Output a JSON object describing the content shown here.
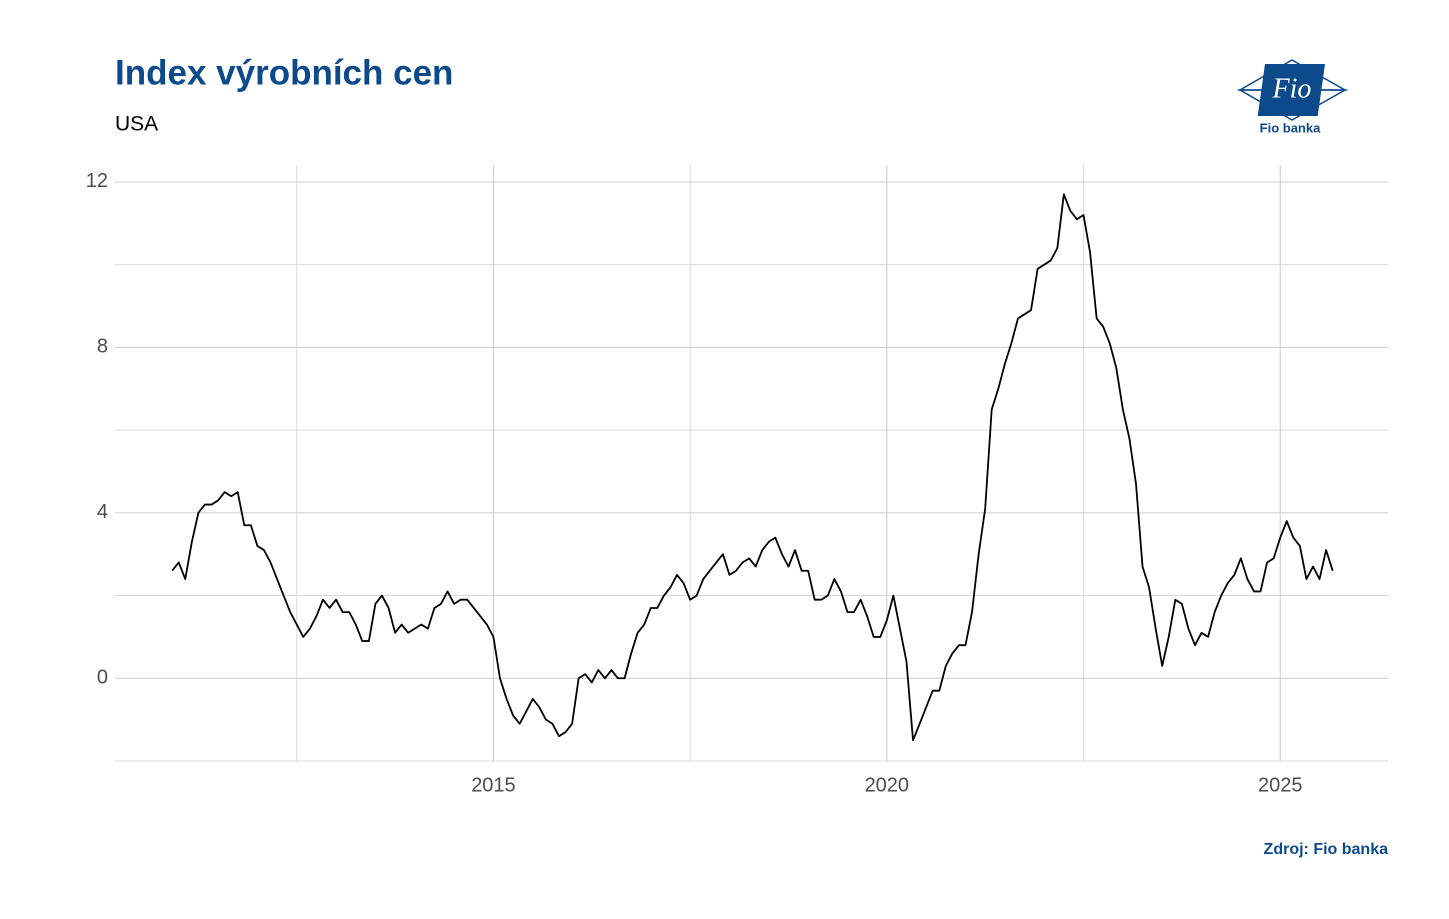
{
  "chart_data": {
    "type": "line",
    "title": "Index výrobních cen",
    "subtitle": "USA",
    "x": [
      2010.917,
      2011,
      2011.083,
      2011.167,
      2011.25,
      2011.333,
      2011.417,
      2011.5,
      2011.583,
      2011.667,
      2011.75,
      2011.833,
      2011.917,
      2012,
      2012.083,
      2012.167,
      2012.25,
      2012.333,
      2012.417,
      2012.5,
      2012.583,
      2012.667,
      2012.75,
      2012.833,
      2012.917,
      2013,
      2013.083,
      2013.167,
      2013.25,
      2013.333,
      2013.417,
      2013.5,
      2013.583,
      2013.667,
      2013.75,
      2013.833,
      2013.917,
      2014,
      2014.083,
      2014.167,
      2014.25,
      2014.333,
      2014.417,
      2014.5,
      2014.583,
      2014.667,
      2014.75,
      2014.833,
      2014.917,
      2015,
      2015.083,
      2015.167,
      2015.25,
      2015.333,
      2015.417,
      2015.5,
      2015.583,
      2015.667,
      2015.75,
      2015.833,
      2015.917,
      2016,
      2016.083,
      2016.167,
      2016.25,
      2016.333,
      2016.417,
      2016.5,
      2016.583,
      2016.667,
      2016.75,
      2016.833,
      2016.917,
      2017,
      2017.083,
      2017.167,
      2017.25,
      2017.333,
      2017.417,
      2017.5,
      2017.583,
      2017.667,
      2017.75,
      2017.833,
      2017.917,
      2018,
      2018.083,
      2018.167,
      2018.25,
      2018.333,
      2018.417,
      2018.5,
      2018.583,
      2018.667,
      2018.75,
      2018.833,
      2018.917,
      2019,
      2019.083,
      2019.167,
      2019.25,
      2019.333,
      2019.417,
      2019.5,
      2019.583,
      2019.667,
      2019.75,
      2019.833,
      2019.917,
      2020,
      2020.083,
      2020.167,
      2020.25,
      2020.333,
      2020.417,
      2020.5,
      2020.583,
      2020.667,
      2020.75,
      2020.833,
      2020.917,
      2021,
      2021.083,
      2021.167,
      2021.25,
      2021.333,
      2021.417,
      2021.5,
      2021.583,
      2021.667,
      2021.75,
      2021.833,
      2021.917,
      2022,
      2022.083,
      2022.167,
      2022.25,
      2022.333,
      2022.417,
      2022.5,
      2022.583,
      2022.667,
      2022.75,
      2022.833,
      2022.917,
      2023,
      2023.083,
      2023.167,
      2023.25,
      2023.333,
      2023.417,
      2023.5,
      2023.583,
      2023.667,
      2023.75,
      2023.833,
      2023.917,
      2024,
      2024.083,
      2024.167,
      2024.25,
      2024.333,
      2024.417,
      2024.5,
      2024.583,
      2024.667,
      2024.75,
      2024.833,
      2024.917,
      2025,
      2025.083,
      2025.167,
      2025.25,
      2025.333,
      2025.417,
      2025.5,
      2025.583,
      2025.667
    ],
    "series": [
      {
        "name": "USA",
        "color": "#000000",
        "values": [
          2.6,
          2.8,
          2.4,
          3.3,
          4.0,
          4.2,
          4.2,
          4.3,
          4.5,
          4.4,
          4.5,
          3.7,
          3.7,
          3.2,
          3.1,
          2.8,
          2.4,
          2.0,
          1.6,
          1.3,
          1.0,
          1.2,
          1.5,
          1.9,
          1.7,
          1.9,
          1.6,
          1.6,
          1.3,
          0.9,
          0.9,
          1.8,
          2.0,
          1.7,
          1.1,
          1.3,
          1.1,
          1.2,
          1.3,
          1.2,
          1.7,
          1.8,
          2.1,
          1.8,
          1.9,
          1.9,
          1.7,
          1.5,
          1.3,
          1.0,
          0.0,
          -0.5,
          -0.9,
          -1.1,
          -0.8,
          -0.5,
          -0.7,
          -1.0,
          -1.1,
          -1.4,
          -1.3,
          -1.1,
          0.0,
          0.1,
          -0.1,
          0.2,
          0.0,
          0.2,
          0.0,
          0.0,
          0.6,
          1.1,
          1.3,
          1.7,
          1.7,
          2.0,
          2.2,
          2.5,
          2.3,
          1.9,
          2.0,
          2.4,
          2.6,
          2.8,
          3.0,
          2.5,
          2.6,
          2.8,
          2.9,
          2.7,
          3.1,
          3.3,
          3.4,
          3.0,
          2.7,
          3.1,
          2.6,
          2.6,
          1.9,
          1.9,
          2.0,
          2.4,
          2.1,
          1.6,
          1.6,
          1.9,
          1.5,
          1.0,
          1.0,
          1.4,
          2.0,
          1.2,
          0.4,
          -1.5,
          -1.1,
          -0.7,
          -0.3,
          -0.3,
          0.3,
          0.6,
          0.8,
          0.8,
          1.6,
          3.0,
          4.1,
          6.5,
          7.0,
          7.6,
          8.1,
          8.7,
          8.8,
          8.9,
          9.9,
          10.0,
          10.1,
          10.4,
          11.7,
          11.3,
          11.1,
          11.2,
          10.3,
          8.7,
          8.5,
          8.1,
          7.5,
          6.5,
          5.8,
          4.7,
          2.7,
          2.2,
          1.2,
          0.3,
          1.0,
          1.9,
          1.8,
          1.2,
          0.8,
          1.1,
          1.0,
          1.6,
          2.0,
          2.3,
          2.5,
          2.9,
          2.4,
          2.1,
          2.1,
          2.8,
          2.9,
          3.4,
          3.8,
          3.4,
          3.2,
          2.4,
          2.7,
          2.4,
          3.1,
          2.6
        ]
      }
    ],
    "xlim": [
      2010.19,
      2026.37
    ],
    "xticks": [
      2015,
      2020,
      2025
    ],
    "xminor": [
      2012.5,
      2017.5,
      2022.5
    ],
    "ylim": [
      -2,
      12.41
    ],
    "yticks": [
      0,
      4,
      8,
      12
    ],
    "yminor": [
      -2,
      2,
      6,
      10
    ],
    "grid": true
  },
  "source": "Zdroj: Fio banka",
  "logo": {
    "mark": "Fio",
    "name": "Fio banka"
  }
}
